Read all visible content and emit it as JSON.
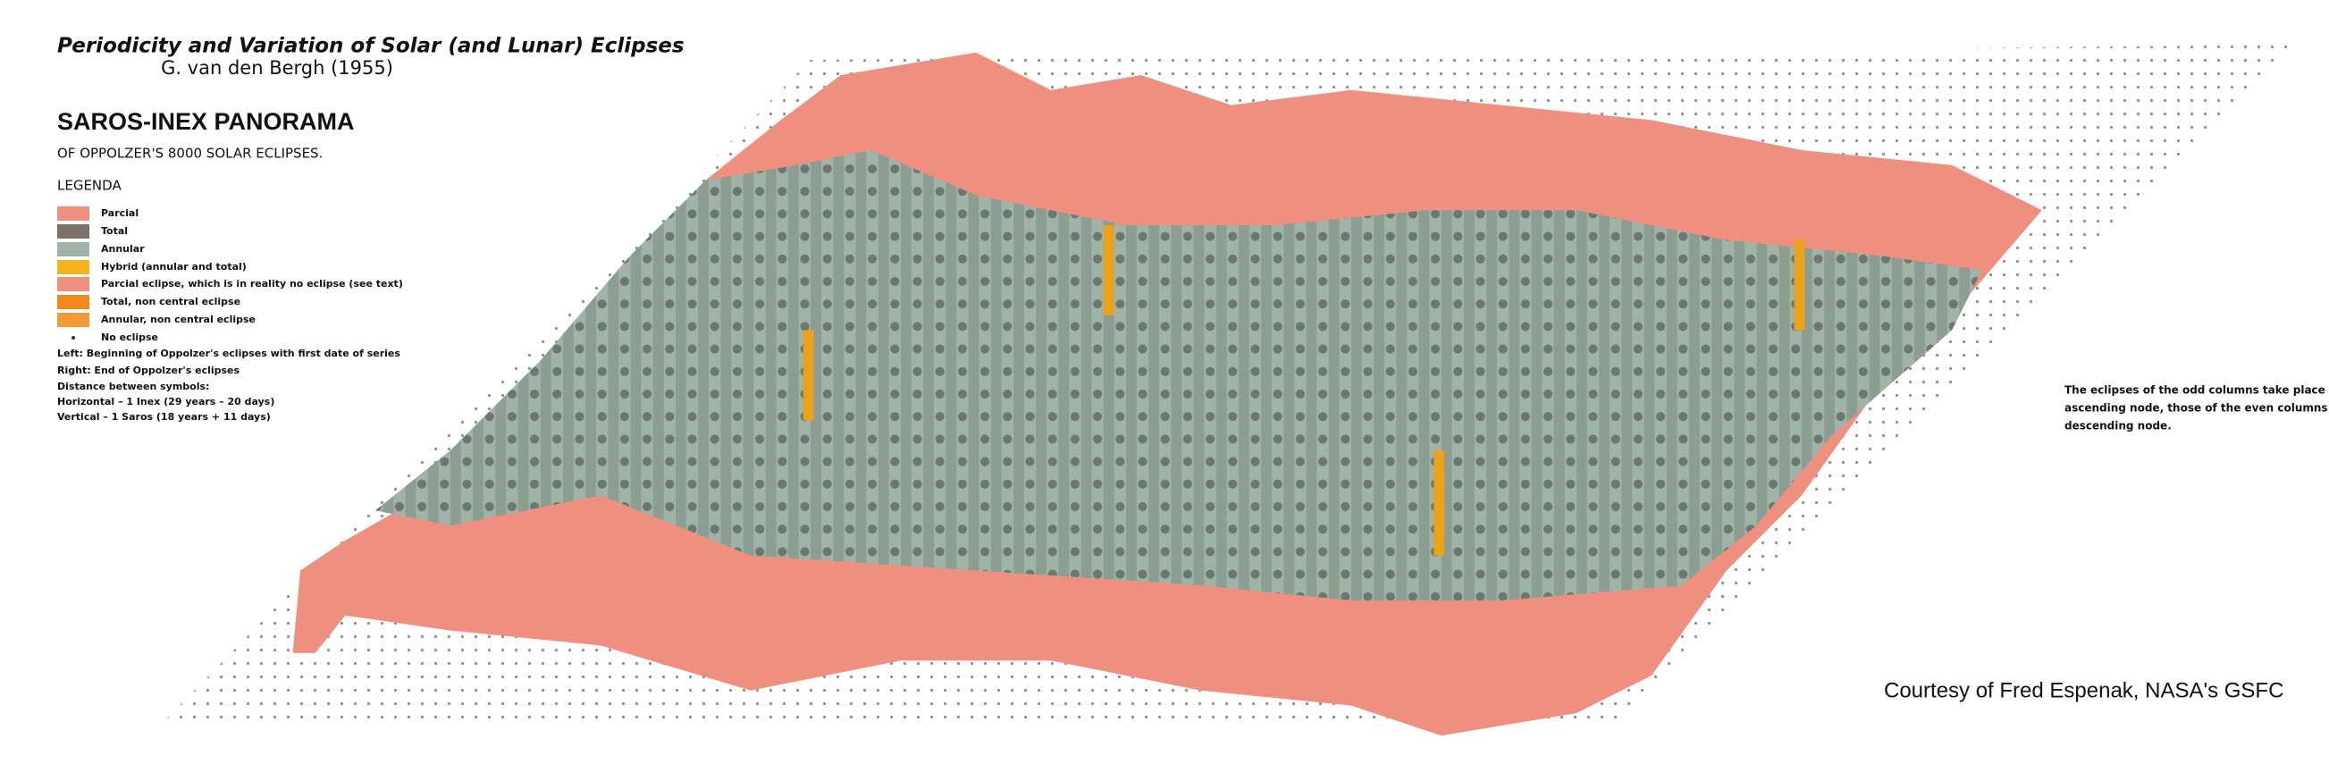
{
  "header": {
    "title": "Periodicity and Variation of Solar (and Lunar) Eclipses",
    "subtitle": "G. van den Bergh (1955)",
    "heading": "SAROS-INEX PANORAMA",
    "subheading": "OF OPPOLZER'S 8000 SOLAR ECLIPSES."
  },
  "legend": {
    "title": "LEGENDA",
    "items": [
      "Parcial",
      "Total",
      "Annular",
      "Hybrid (annular and total)",
      "Parcial eclipse, which is in reality no eclipse (see text)",
      "Total, non central eclipse",
      "Annular, non central eclipse",
      "No eclipse"
    ]
  },
  "notes": [
    "Left:  Beginning of Oppolzer's eclipses with first date of series",
    "Right: End of Oppolzer's eclipses",
    "Distance between symbols:",
    "Horizontal – 1 Inex (29 years – 20 days)",
    "Vertical – 1 Saros (18 years + 11 days)"
  ],
  "node_note": [
    "The eclipses of the odd columns take place at the",
    "ascending node, those of the even columns at the",
    "descending node."
  ],
  "credit": "Courtesy of Fred Espenak, NASA's GSFC"
}
